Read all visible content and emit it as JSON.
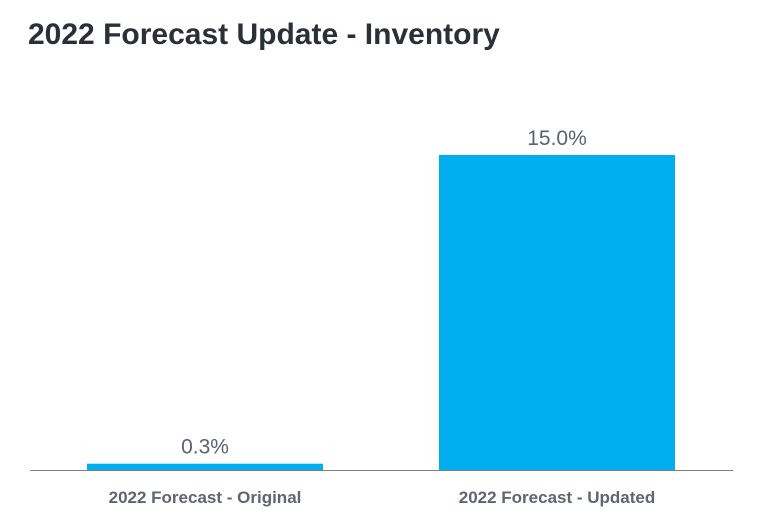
{
  "chart_data": {
    "type": "bar",
    "title": "2022 Forecast Update - Inventory",
    "categories": [
      "2022 Forecast - Original",
      "2022 Forecast - Updated"
    ],
    "values": [
      0.3,
      15.0
    ],
    "value_labels": [
      "0.3%",
      "15.0%"
    ],
    "unit": "%",
    "ylim": [
      0,
      15.0
    ],
    "grid": false,
    "legend": "none",
    "bar_color": "#00adee",
    "axis_color": "#7f7f7f"
  }
}
